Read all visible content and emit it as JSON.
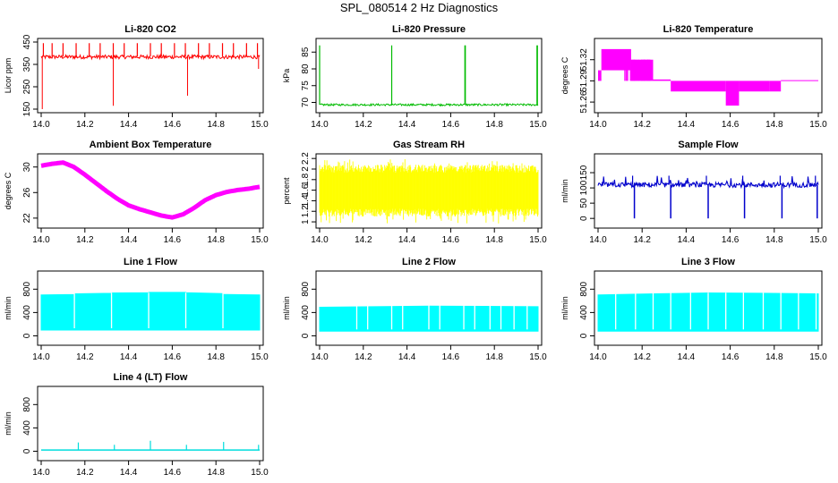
{
  "page": {
    "title": "SPL_080514  2 Hz Diagnostics"
  },
  "chart_data": [
    {
      "id": "co2",
      "type": "line",
      "title": "Li-820 CO2",
      "ylabel": "Licor ppm",
      "xlim": [
        14.0,
        15.0
      ],
      "xticks": [
        14.0,
        14.2,
        14.4,
        14.6,
        14.8,
        15.0
      ],
      "ylim": [
        150,
        450
      ],
      "yticks": [
        150,
        250,
        350,
        450
      ],
      "color": "#ff0000",
      "series": [
        {
          "name": "CO2",
          "baseline": 385,
          "band": [
            375,
            392
          ],
          "spikes_up": [
            14.01,
            14.05,
            14.1,
            14.16,
            14.22,
            14.27,
            14.33,
            14.38,
            14.44,
            14.5,
            14.55,
            14.61,
            14.66,
            14.72,
            14.77,
            14.83,
            14.88,
            14.94,
            14.99
          ],
          "spike_up_value": 445,
          "spikes_down": [
            {
              "x": 14.005,
              "y": 150
            },
            {
              "x": 14.33,
              "y": 165
            },
            {
              "x": 14.67,
              "y": 210
            },
            {
              "x": 14.995,
              "y": 330
            }
          ]
        }
      ]
    },
    {
      "id": "pressure",
      "type": "line",
      "title": "Li-820 Pressure",
      "ylabel": "kPa",
      "xlim": [
        14.0,
        15.0
      ],
      "xticks": [
        14.0,
        14.2,
        14.4,
        14.6,
        14.8,
        15.0
      ],
      "ylim": [
        68,
        88
      ],
      "yticks": [
        70,
        75,
        80,
        85
      ],
      "color": "#00bb00",
      "series": [
        {
          "name": "Pressure",
          "baseline": 69.3,
          "band": [
            69.0,
            69.6
          ],
          "spikes_up": [
            14.0,
            14.33,
            14.665,
            14.667,
            14.995,
            14.997
          ],
          "spike_up_value": 87
        }
      ]
    },
    {
      "id": "li820temp",
      "type": "line",
      "title": "Li-820 Temperature",
      "ylabel": "degrees C",
      "xlim": [
        14.0,
        15.0
      ],
      "xticks": [
        14.0,
        14.2,
        14.4,
        14.6,
        14.8,
        15.0
      ],
      "ylim": [
        51.25,
        51.345
      ],
      "yticks": [
        51.26,
        51.29,
        51.32
      ],
      "color": "#ff00ff",
      "series": [
        {
          "name": "Temperature",
          "levels": [
            51.32,
            51.305,
            51.29,
            51.275,
            51.26
          ],
          "segments": [
            {
              "x0": 14.0,
              "x1": 14.015,
              "lo": 51.29,
              "hi": 51.305
            },
            {
              "x0": 14.015,
              "x1": 14.15,
              "lo": 51.305,
              "hi": 51.335
            },
            {
              "x0": 14.15,
              "x1": 14.25,
              "lo": 51.29,
              "hi": 51.32
            },
            {
              "x0": 14.25,
              "x1": 14.33,
              "lo": 51.29,
              "hi": 51.292
            },
            {
              "x0": 14.33,
              "x1": 14.58,
              "lo": 51.275,
              "hi": 51.29
            },
            {
              "x0": 14.58,
              "x1": 14.64,
              "lo": 51.255,
              "hi": 51.29
            },
            {
              "x0": 14.64,
              "x1": 14.78,
              "lo": 51.275,
              "hi": 51.29
            },
            {
              "x0": 14.78,
              "x1": 14.83,
              "lo": 51.275,
              "hi": 51.29
            },
            {
              "x0": 14.83,
              "x1": 15.0,
              "lo": 51.29,
              "hi": 51.291
            }
          ]
        }
      ]
    },
    {
      "id": "ambient",
      "type": "line",
      "title": "Ambient Box Temperature",
      "ylabel": "degrees C",
      "xlim": [
        14.0,
        15.0
      ],
      "xticks": [
        14.0,
        14.2,
        14.4,
        14.6,
        14.8,
        15.0
      ],
      "ylim": [
        21,
        31.5
      ],
      "yticks": [
        22,
        26,
        30
      ],
      "color": "#ff00ff",
      "series": [
        {
          "name": "Ambient",
          "x": [
            14.0,
            14.05,
            14.1,
            14.15,
            14.2,
            14.25,
            14.3,
            14.35,
            14.4,
            14.45,
            14.5,
            14.55,
            14.6,
            14.65,
            14.7,
            14.75,
            14.8,
            14.85,
            14.9,
            14.95,
            15.0
          ],
          "y": [
            30.2,
            30.5,
            30.7,
            30.0,
            28.8,
            27.5,
            26.2,
            25.0,
            24.0,
            23.4,
            22.9,
            22.4,
            22.1,
            22.6,
            23.6,
            24.8,
            25.6,
            26.1,
            26.4,
            26.6,
            26.9
          ]
        }
      ]
    },
    {
      "id": "rh",
      "type": "line",
      "title": "Gas Stream RH",
      "ylabel": "percent",
      "xlim": [
        14.0,
        15.0
      ],
      "xticks": [
        14.0,
        14.2,
        14.4,
        14.6,
        14.8,
        15.0
      ],
      "ylim": [
        0.95,
        2.22
      ],
      "yticks": [
        1.0,
        1.2,
        1.4,
        1.6,
        1.8,
        2.0,
        2.2
      ],
      "color": "#ffff00",
      "series": [
        {
          "name": "RH",
          "band": [
            1.1,
            2.08
          ],
          "extremes": [
            0.97,
            2.2
          ]
        }
      ]
    },
    {
      "id": "sample",
      "type": "line",
      "title": "Sample Flow",
      "ylabel": "ml/min",
      "xlim": [
        14.0,
        15.0
      ],
      "xticks": [
        14.0,
        14.2,
        14.4,
        14.6,
        14.8,
        15.0
      ],
      "ylim": [
        -20,
        200
      ],
      "yticks": [
        0,
        50,
        100,
        150
      ],
      "color": "#0000cc",
      "series": [
        {
          "name": "Sample Flow",
          "baseline": 110,
          "band": [
            102,
            118
          ],
          "dips": [
            14.165,
            14.33,
            14.5,
            14.665,
            14.835,
            14.995
          ],
          "dip_value": 0,
          "spike_value": 140
        }
      ]
    },
    {
      "id": "line1",
      "type": "area",
      "title": "Line 1 Flow",
      "ylabel": "ml/min",
      "xlim": [
        14.0,
        15.0
      ],
      "xticks": [
        14.0,
        14.2,
        14.4,
        14.6,
        14.8,
        15.0
      ],
      "ylim": [
        -100,
        1050
      ],
      "yticks": [
        0,
        400,
        800
      ],
      "color": "#00ffff",
      "series": [
        {
          "name": "Line 1",
          "lo": 100,
          "x": [
            14.0,
            14.15,
            14.155,
            14.32,
            14.325,
            14.49,
            14.495,
            14.66,
            14.665,
            14.83,
            14.835,
            15.0
          ],
          "hi": [
            700,
            710,
            720,
            730,
            735,
            740,
            745,
            745,
            740,
            725,
            710,
            700
          ],
          "gaps": [
            14.152,
            14.322,
            14.492,
            14.662,
            14.832
          ]
        }
      ]
    },
    {
      "id": "line2",
      "type": "area",
      "title": "Line 2 Flow",
      "ylabel": "ml/min",
      "xlim": [
        14.0,
        15.0
      ],
      "xticks": [
        14.0,
        14.2,
        14.4,
        14.6,
        14.8,
        15.0
      ],
      "ylim": [
        -100,
        1050
      ],
      "yticks": [
        0,
        400,
        800
      ],
      "color": "#00ffff",
      "series": [
        {
          "name": "Line 2",
          "lo": 80,
          "x": [
            14.0,
            14.25,
            14.5,
            14.75,
            15.0
          ],
          "hi": [
            490,
            500,
            510,
            505,
            500
          ],
          "gaps": [
            14.17,
            14.22,
            14.33,
            14.38,
            14.5,
            14.55,
            14.66,
            14.71,
            14.78,
            14.83,
            14.89,
            14.95
          ]
        }
      ]
    },
    {
      "id": "line3",
      "type": "area",
      "title": "Line 3 Flow",
      "ylabel": "ml/min",
      "xlim": [
        14.0,
        15.0
      ],
      "xticks": [
        14.0,
        14.2,
        14.4,
        14.6,
        14.8,
        15.0
      ],
      "ylim": [
        -100,
        1050
      ],
      "yticks": [
        0,
        400,
        800
      ],
      "color": "#00ffff",
      "series": [
        {
          "name": "Line 3",
          "lo": 80,
          "x": [
            14.0,
            14.25,
            14.5,
            14.75,
            15.0
          ],
          "hi": [
            700,
            720,
            735,
            730,
            720
          ],
          "gaps": [
            14.08,
            14.17,
            14.25,
            14.33,
            14.42,
            14.5,
            14.58,
            14.66,
            14.75,
            14.83,
            14.91,
            14.99
          ]
        }
      ]
    },
    {
      "id": "line4",
      "type": "line",
      "title": "Line 4 (LT) Flow",
      "ylabel": "ml/min",
      "xlim": [
        14.0,
        15.0
      ],
      "xticks": [
        14.0,
        14.2,
        14.4,
        14.6,
        14.8,
        15.0
      ],
      "ylim": [
        -100,
        1050
      ],
      "yticks": [
        0,
        400,
        800
      ],
      "color": "#00dddd",
      "series": [
        {
          "name": "Line 4",
          "baseline": 20,
          "spikes": [
            {
              "x": 14.17,
              "y": 150
            },
            {
              "x": 14.335,
              "y": 110
            },
            {
              "x": 14.5,
              "y": 180
            },
            {
              "x": 14.665,
              "y": 110
            },
            {
              "x": 14.835,
              "y": 160
            },
            {
              "x": 14.995,
              "y": 110
            }
          ]
        }
      ]
    }
  ]
}
